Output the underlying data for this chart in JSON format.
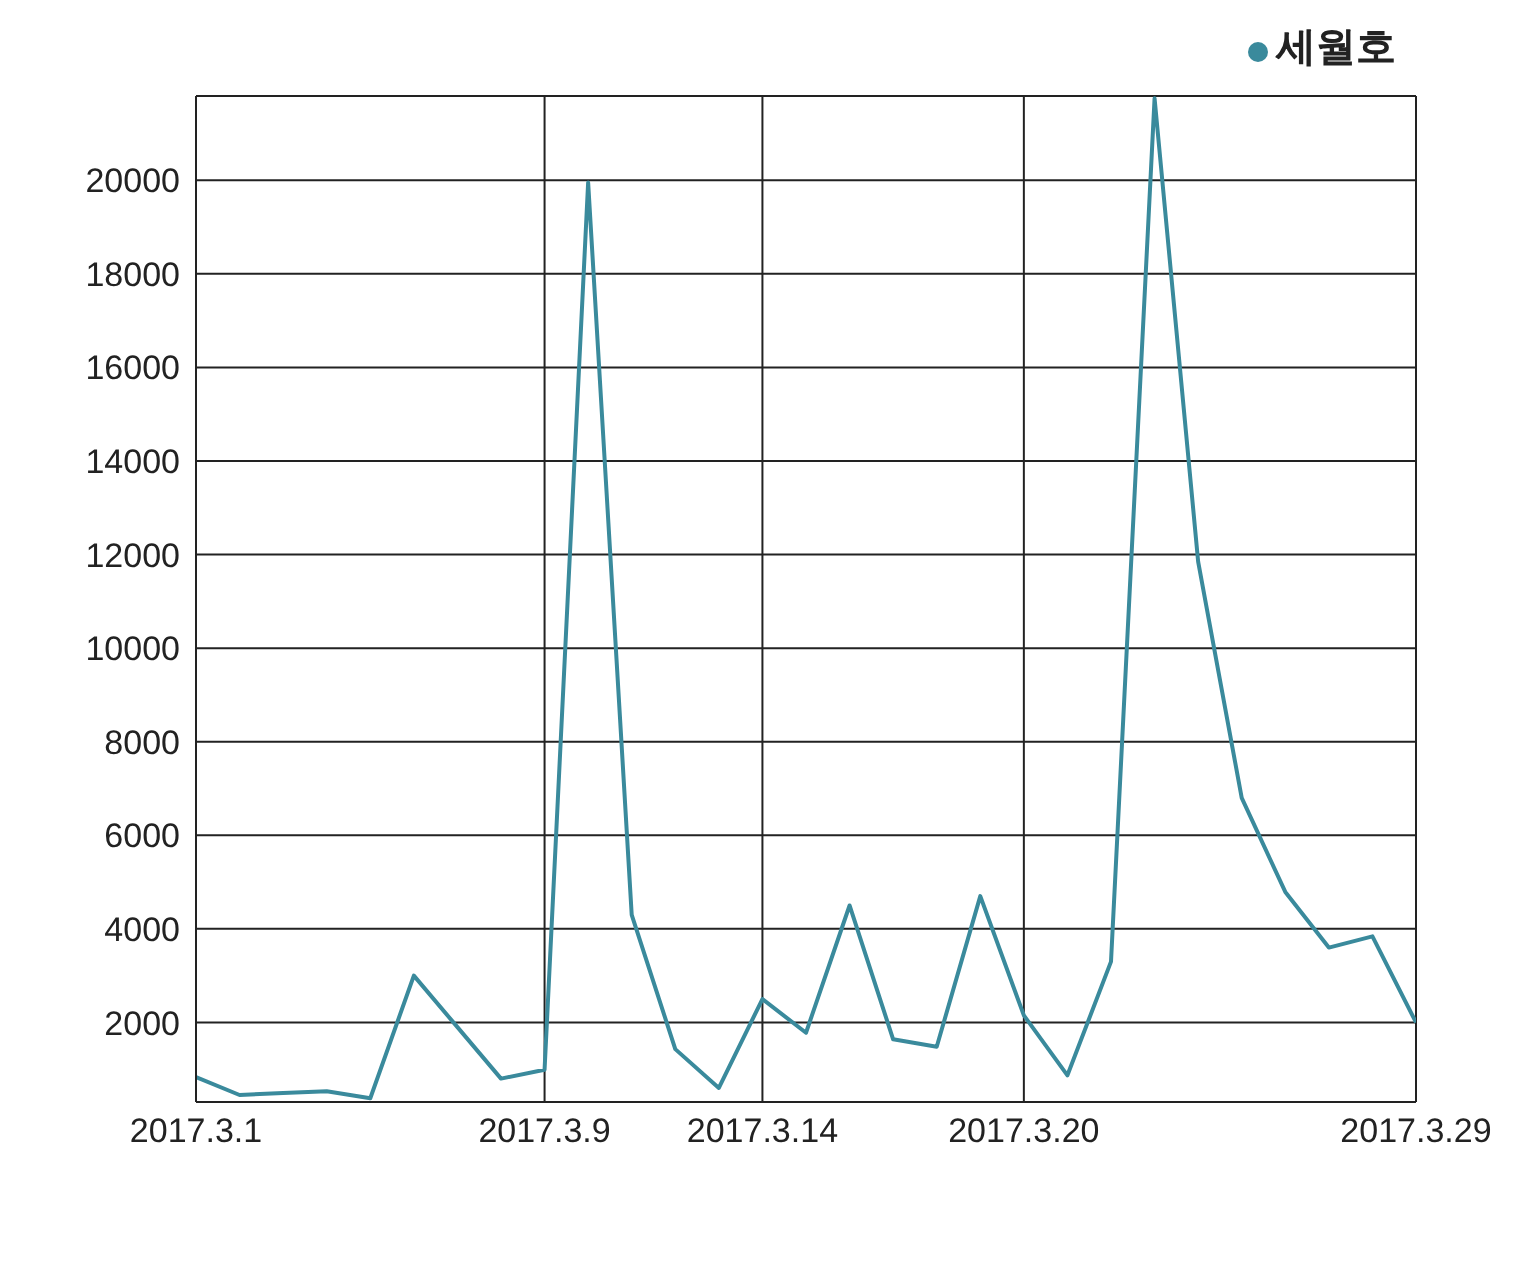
{
  "chart_data": {
    "type": "line",
    "x": [
      "2017-03-01",
      "2017-03-02",
      "2017-03-03",
      "2017-03-04",
      "2017-03-05",
      "2017-03-06",
      "2017-03-07",
      "2017-03-08",
      "2017-03-09",
      "2017-03-10",
      "2017-03-11",
      "2017-03-12",
      "2017-03-13",
      "2017-03-14",
      "2017-03-15",
      "2017-03-16",
      "2017-03-17",
      "2017-03-18",
      "2017-03-19",
      "2017-03-20",
      "2017-03-21",
      "2017-03-22",
      "2017-03-23",
      "2017-03-24",
      "2017-03-25",
      "2017-03-26",
      "2017-03-27",
      "2017-03-28",
      "2017-03-29"
    ],
    "series": [
      {
        "name": "세월호",
        "color": "#3a8a9c",
        "values": [
          830,
          450,
          490,
          530,
          380,
          3000,
          1900,
          800,
          990,
          19950,
          4300,
          1430,
          600,
          2500,
          1780,
          4500,
          1640,
          1480,
          4700,
          2150,
          870,
          3300,
          21750,
          11850,
          6800,
          4790,
          3600,
          3840,
          2000
        ]
      }
    ],
    "xlim": [
      "2017-03-01",
      "2017-03-29"
    ],
    "xticks": [
      {
        "value": "2017-03-01",
        "label": "2017.3.1"
      },
      {
        "value": "2017-03-09",
        "label": "2017.3.9"
      },
      {
        "value": "2017-03-14",
        "label": "2017.3.14"
      },
      {
        "value": "2017-03-20",
        "label": "2017.3.20"
      },
      {
        "value": "2017-03-29",
        "label": "2017.3.29"
      }
    ],
    "ylim": [
      300,
      21800
    ],
    "yticks": [
      2000,
      4000,
      6000,
      8000,
      10000,
      12000,
      14000,
      16000,
      18000,
      20000
    ],
    "grid": true,
    "legend": "top right",
    "marker": "none",
    "line_style": "solid"
  }
}
